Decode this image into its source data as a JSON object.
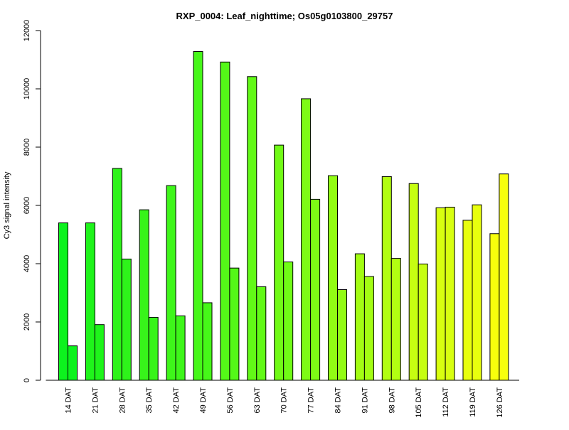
{
  "chart_data": {
    "type": "bar",
    "title": "RXP_0004: Leaf_nighttime; Os05g0103800_29757",
    "xlabel": "",
    "ylabel": "Cy3 signal intensity",
    "ylim": [
      0,
      12000
    ],
    "yticks": [
      "0",
      "2000",
      "4000",
      "6000",
      "8000",
      "10000",
      "12000"
    ],
    "categories": [
      "14 DAT",
      "21 DAT",
      "28 DAT",
      "35 DAT",
      "42 DAT",
      "49 DAT",
      "56 DAT",
      "63 DAT",
      "70 DAT",
      "77 DAT",
      "84 DAT",
      "91 DAT",
      "98 DAT",
      "105 DAT",
      "112 DAT",
      "119 DAT",
      "126 DAT"
    ],
    "series": [
      {
        "values": [
          5400,
          5400,
          7270,
          5850,
          6680,
          11280,
          10920,
          10420,
          8070,
          9660,
          7020,
          4340,
          6990,
          6750,
          5920,
          5490,
          5030
        ]
      },
      {
        "values": [
          1180,
          1910,
          4160,
          2160,
          2210,
          2660,
          3850,
          3210,
          4060,
          6210,
          3110,
          3560,
          4180,
          3990,
          5940,
          6020,
          7080
        ]
      }
    ],
    "bar_colors": [
      "#0DF21E",
      "#1FF41B",
      "#2EF31A",
      "#37F41A",
      "#3EF61A",
      "#46F719",
      "#54F818",
      "#62F917",
      "#70FA16",
      "#7EFB15",
      "#92FC14",
      "#A3FD13",
      "#B2FE12",
      "#C6FE11",
      "#D8FF10",
      "#E8FF0E",
      "#F7FF0C"
    ],
    "grid": false,
    "legend": "none"
  }
}
